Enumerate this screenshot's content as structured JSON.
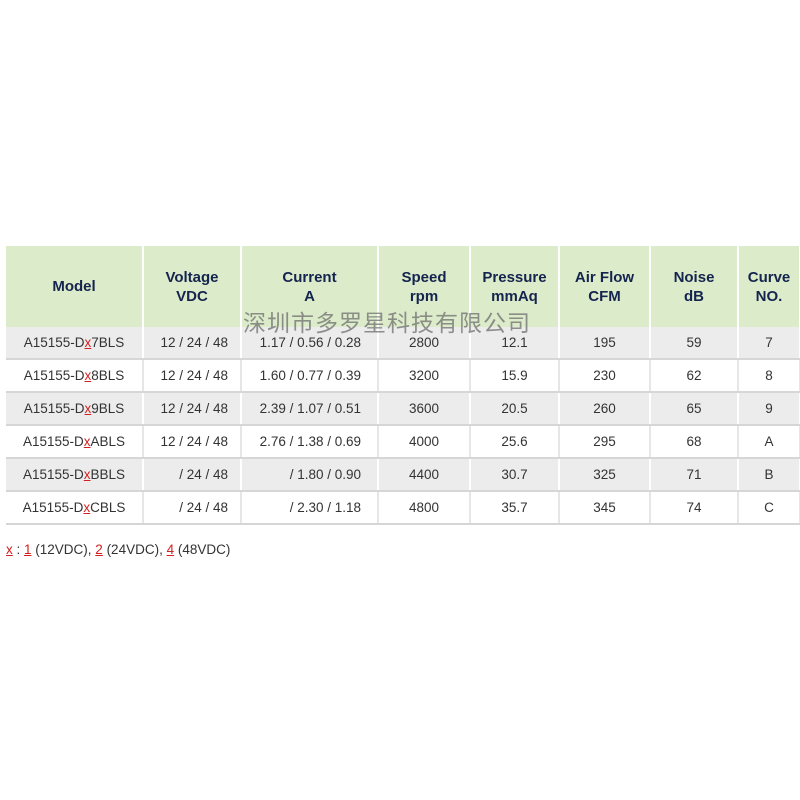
{
  "headers": [
    [
      "Model",
      ""
    ],
    [
      "Voltage",
      "VDC"
    ],
    [
      "Current",
      "A"
    ],
    [
      "Speed",
      "rpm"
    ],
    [
      "Pressure",
      "mmAq"
    ],
    [
      "Air Flow",
      "CFM"
    ],
    [
      "Noise",
      "dB"
    ],
    [
      "Curve",
      "NO."
    ]
  ],
  "rows": [
    {
      "prefix": "A15155-D",
      "x": "x",
      "suffix": "7BLS",
      "voltage": "12 / 24 / 48",
      "current": "1.17 / 0.56 / 0.28",
      "speed": "2800",
      "pressure": "12.1",
      "airflow": "195",
      "noise": "59",
      "curve": "7"
    },
    {
      "prefix": "A15155-D",
      "x": "x",
      "suffix": "8BLS",
      "voltage": "12 / 24 / 48",
      "current": "1.60 / 0.77 / 0.39",
      "speed": "3200",
      "pressure": "15.9",
      "airflow": "230",
      "noise": "62",
      "curve": "8"
    },
    {
      "prefix": "A15155-D",
      "x": "x",
      "suffix": "9BLS",
      "voltage": "12 / 24 / 48",
      "current": "2.39 / 1.07 / 0.51",
      "speed": "3600",
      "pressure": "20.5",
      "airflow": "260",
      "noise": "65",
      "curve": "9"
    },
    {
      "prefix": "A15155-D",
      "x": "x",
      "suffix": "ABLS",
      "voltage": "12 / 24 / 48",
      "current": "2.76 / 1.38 / 0.69",
      "speed": "4000",
      "pressure": "25.6",
      "airflow": "295",
      "noise": "68",
      "curve": "A"
    },
    {
      "prefix": "A15155-D",
      "x": "x",
      "suffix": "BBLS",
      "voltage": "/ 24 / 48",
      "current": "/ 1.80 / 0.90",
      "speed": "4400",
      "pressure": "30.7",
      "airflow": "325",
      "noise": "71",
      "curve": "B"
    },
    {
      "prefix": "A15155-D",
      "x": "x",
      "suffix": "CBLS",
      "voltage": "/ 24 / 48",
      "current": "/ 2.30 / 1.18",
      "speed": "4800",
      "pressure": "35.7",
      "airflow": "345",
      "noise": "74",
      "curve": "C"
    }
  ],
  "note": {
    "x": "x",
    "sep": " : ",
    "v1": "1",
    "t1": " (12VDC), ",
    "v2": "2",
    "t2": " (24VDC), ",
    "v4": "4",
    "t4": " (48VDC)"
  },
  "watermark": "深圳市多罗星科技有限公司",
  "colors": {
    "header_bg": "#dcebc9",
    "header_text": "#15244f",
    "accent_red": "#d21f1f",
    "row_alt": "#ececec"
  }
}
